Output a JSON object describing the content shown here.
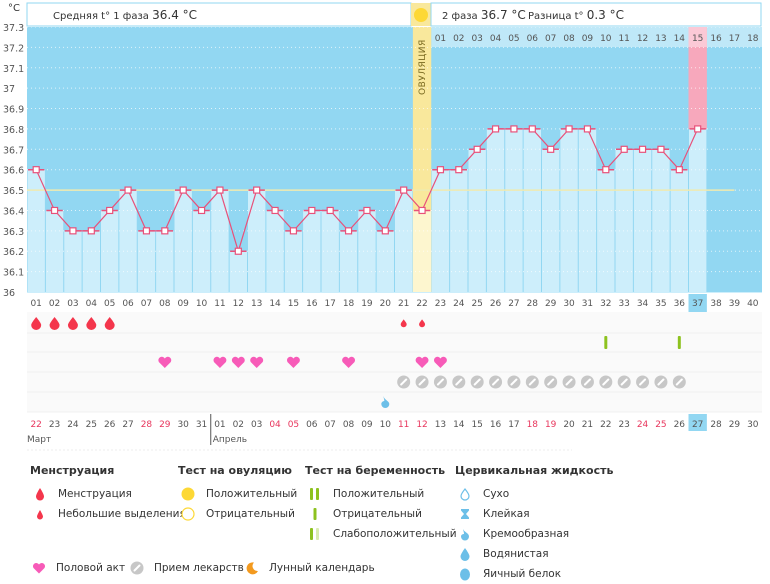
{
  "header": {
    "unit": "°C",
    "phase1_label": "Средняя t° 1 фаза",
    "phase1_value": "36.4 °C",
    "phase2_label": "2 фаза",
    "phase2_value": "36.7 °C",
    "diff_label": "Разница t°",
    "diff_value": "0.3 °C",
    "ovulation_label": "ОВУЛЯЦИЯ"
  },
  "colors": {
    "bg_high": "#92d7f2",
    "bar_fill": "#cdeefb",
    "line": "#e8517a",
    "ovulation": "#f9e89c",
    "expected_period": "#f7a8bc",
    "coverline": "#efeab0",
    "red_date": "#e8365d",
    "today": "#92d7f2"
  },
  "chart_data": {
    "type": "line",
    "title": "",
    "xlabel": "День цикла",
    "ylabel": "°C",
    "ylim": [
      36.0,
      37.3
    ],
    "yticks": [
      "36",
      "36.1",
      "36.2",
      "36.3",
      "36.4",
      "36.5",
      "36.6",
      "36.7",
      "36.8",
      "36.9",
      "37",
      "37.1",
      "37.2",
      "37.3"
    ],
    "cycle_days": [
      "01",
      "02",
      "03",
      "04",
      "05",
      "06",
      "07",
      "08",
      "09",
      "10",
      "11",
      "12",
      "13",
      "14",
      "15",
      "16",
      "17",
      "18",
      "19",
      "20",
      "21",
      "22",
      "23",
      "24",
      "25",
      "26",
      "27",
      "28",
      "29",
      "30",
      "31",
      "32",
      "33",
      "34",
      "35",
      "36",
      "37",
      "38",
      "39",
      "40"
    ],
    "series": [
      {
        "name": "Базальная температура",
        "values": [
          36.6,
          36.4,
          36.3,
          36.3,
          36.4,
          36.5,
          36.3,
          36.3,
          36.5,
          36.4,
          36.5,
          36.2,
          36.5,
          36.4,
          36.3,
          36.4,
          36.4,
          36.3,
          36.4,
          36.3,
          36.5,
          36.4,
          36.6,
          36.6,
          36.7,
          36.8,
          36.8,
          36.8,
          36.7,
          36.8,
          36.8,
          36.6,
          36.7,
          36.7,
          36.7,
          36.6,
          36.8,
          null,
          null,
          null
        ]
      }
    ],
    "coverline": 36.5,
    "ovulation_day": 22,
    "dpo_labels": [
      "01",
      "02",
      "03",
      "04",
      "05",
      "06",
      "07",
      "08",
      "09",
      "10",
      "11",
      "12",
      "13",
      "14",
      "15",
      "16",
      "17",
      "18"
    ],
    "expected_period_dpo": "15",
    "today_day": "37",
    "grid": true
  },
  "events": {
    "menstruation_days": [
      1,
      2,
      3,
      4,
      5
    ],
    "spotting_days": [
      21,
      22
    ],
    "pregnancy_test_negative_days": [
      32,
      36
    ],
    "intercourse_days": [
      8,
      11,
      12,
      13,
      15,
      18,
      22,
      23
    ],
    "medication_days": [
      21,
      22,
      23,
      24,
      25,
      26,
      27,
      28,
      29,
      30,
      31,
      32,
      33,
      34,
      35,
      36
    ],
    "cervical_creamy_days": [
      20
    ]
  },
  "dates": {
    "values": [
      "22",
      "23",
      "24",
      "25",
      "26",
      "27",
      "28",
      "29",
      "30",
      "31",
      "01",
      "02",
      "03",
      "04",
      "05",
      "06",
      "07",
      "08",
      "09",
      "10",
      "11",
      "12",
      "13",
      "14",
      "15",
      "16",
      "17",
      "18",
      "19",
      "20",
      "21",
      "22",
      "23",
      "24",
      "25",
      "26",
      "27",
      "28",
      "29",
      "30"
    ],
    "red_indices": [
      0,
      6,
      7,
      13,
      14,
      20,
      21,
      27,
      28,
      33,
      34
    ],
    "today_index": 36,
    "months": [
      {
        "name": "Март",
        "start_index": 0
      },
      {
        "name": "Апрель",
        "start_index": 10
      }
    ]
  },
  "legend": {
    "menstruation": {
      "title": "Менструация",
      "items": [
        "Менструация",
        "Небольшие выделения"
      ]
    },
    "ovulation_test": {
      "title": "Тест на овуляцию",
      "items": [
        "Положительный",
        "Отрицательный"
      ]
    },
    "pregnancy_test": {
      "title": "Тест на беременность",
      "items": [
        "Положительный",
        "Отрицательный",
        "Слабоположительный"
      ]
    },
    "cervical": {
      "title": "Цервикальная жидкость",
      "items": [
        "Сухо",
        "Клейкая",
        "Кремообразная",
        "Водянистая",
        "Яичный белок"
      ]
    },
    "other": {
      "intercourse": "Половой акт",
      "medication": "Прием лекарств",
      "lunar": "Лунный календарь"
    }
  }
}
